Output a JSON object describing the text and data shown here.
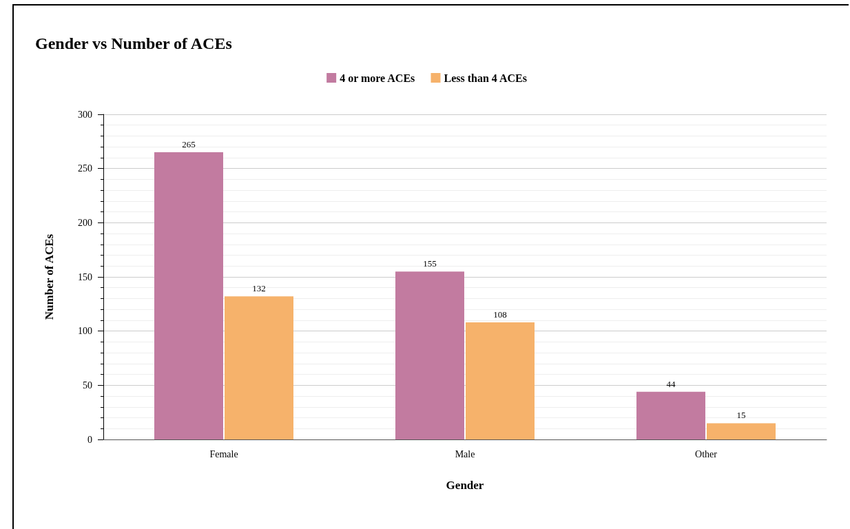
{
  "chart_data": {
    "type": "bar",
    "title": "Gender vs Number of ACEs",
    "xlabel": "Gender",
    "ylabel": "Number of ACEs",
    "categories": [
      "Female",
      "Male",
      "Other"
    ],
    "series": [
      {
        "name": "4 or more ACEs",
        "color": "#c27ba0",
        "values": [
          265,
          155,
          44
        ]
      },
      {
        "name": "Less than 4 ACEs",
        "color": "#f6b26b",
        "values": [
          132,
          108,
          15
        ]
      }
    ],
    "ylim": [
      0,
      300
    ],
    "yticks": [
      0,
      50,
      100,
      150,
      200,
      250,
      300
    ],
    "grid": "y",
    "legend": "top",
    "data_labels": true
  }
}
